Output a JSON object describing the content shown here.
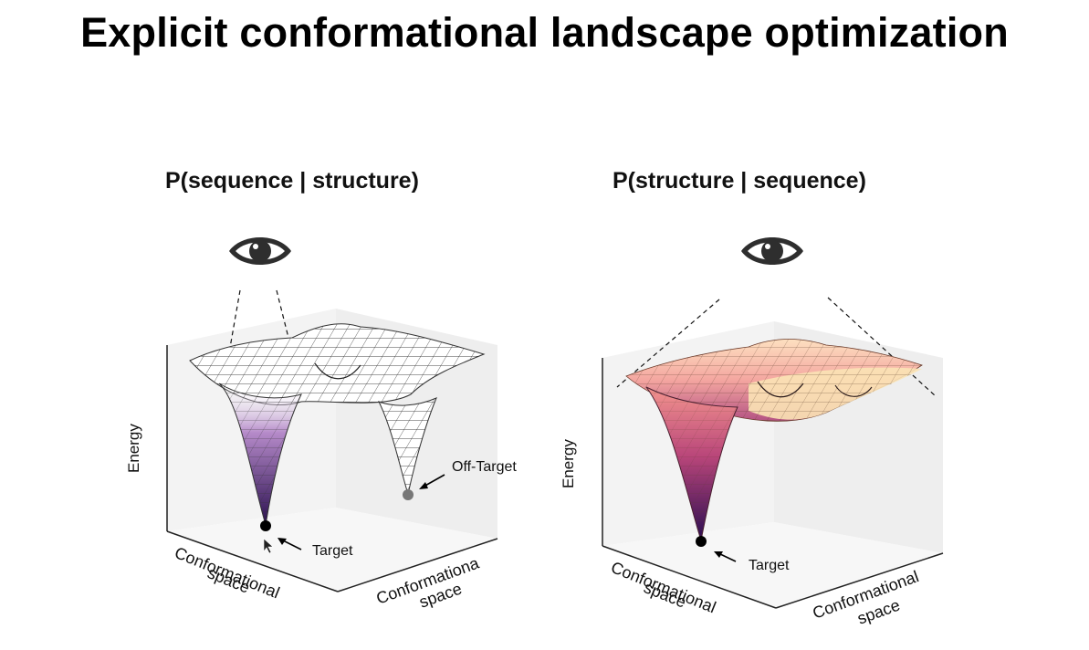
{
  "slide": {
    "title": "Explicit conformational landscape optimization"
  },
  "panels": [
    {
      "title": "P(sequence | structure)",
      "icon": "eye-icon",
      "axis_energy": "Energy",
      "axis_x_line1": "Conformational",
      "axis_x_line2": "space",
      "axis_y_line1": "Conformationa",
      "axis_y_line2": "space",
      "target_label": "Target",
      "offtarget_label": "Off-Target",
      "surface_color": "#ffffff",
      "well_color": "#5b2a86"
    },
    {
      "title": "P(structure | sequence)",
      "icon": "eye-icon",
      "axis_energy": "Energy",
      "axis_x_line1": "Conformational",
      "axis_x_line2": "space",
      "axis_y_line1": "Conformational",
      "axis_y_line2": "space",
      "target_label": "Target",
      "surface_color": "#f7c49b",
      "well_color": "#4a1e7a"
    }
  ]
}
